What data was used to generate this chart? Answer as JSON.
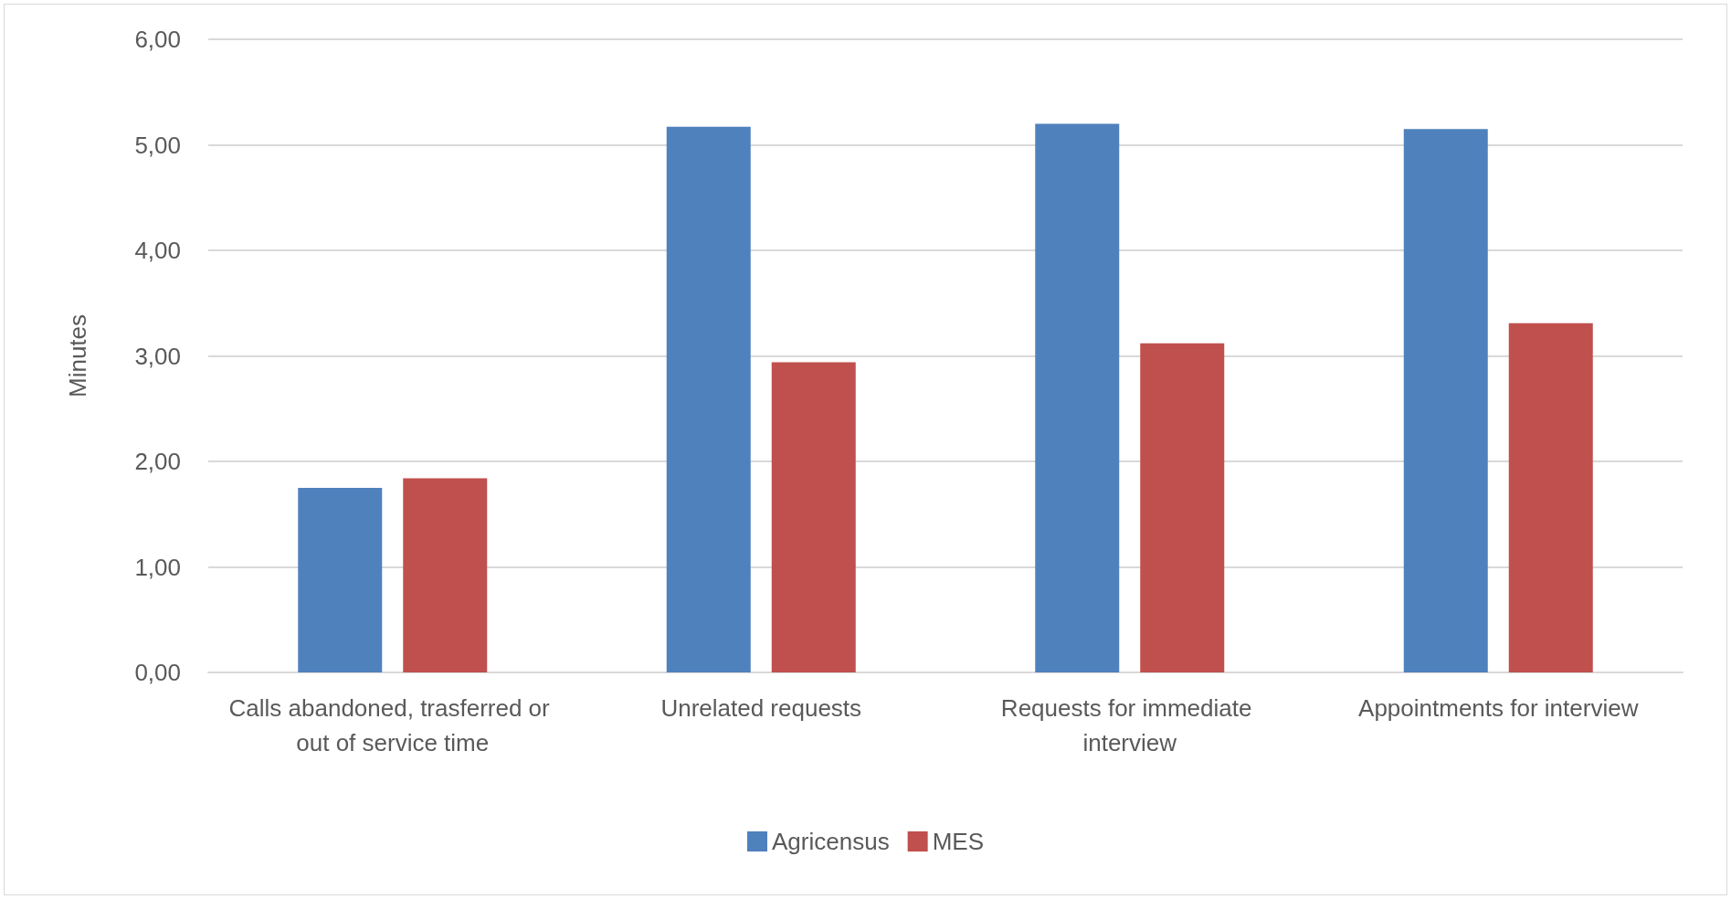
{
  "chart_data": {
    "type": "bar",
    "ylabel": "Minutes",
    "categories": [
      "Calls abandoned, trasferred or out of service time",
      "Unrelated requests",
      "Requests for immediate interview",
      "Appointments for interview"
    ],
    "series": [
      {
        "name": "Agricensus",
        "color": "#4f81bd",
        "values": [
          1.75,
          5.17,
          5.2,
          5.15
        ]
      },
      {
        "name": "MES",
        "color": "#c0504d",
        "values": [
          1.84,
          2.94,
          3.12,
          3.31
        ]
      }
    ],
    "ylim": [
      0,
      6
    ],
    "yticks": [
      {
        "value": 0,
        "label": "0,00"
      },
      {
        "value": 1,
        "label": "1,00"
      },
      {
        "value": 2,
        "label": "2,00"
      },
      {
        "value": 3,
        "label": "3,00"
      },
      {
        "value": 4,
        "label": "4,00"
      },
      {
        "value": 5,
        "label": "5,00"
      },
      {
        "value": 6,
        "label": "6,00"
      }
    ],
    "grid": "y",
    "legend": "bottom"
  }
}
